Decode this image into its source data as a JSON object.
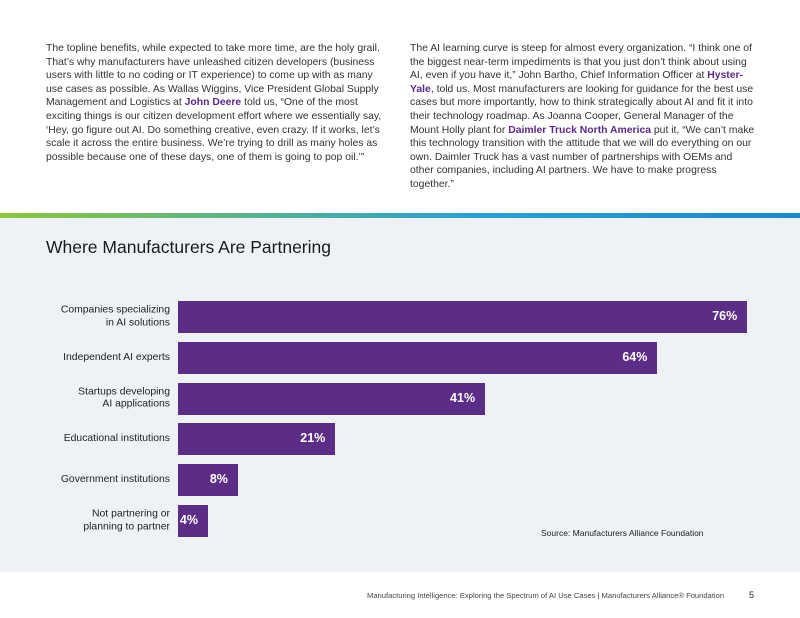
{
  "columns": [
    {
      "segments": [
        {
          "text": "The topline benefits, while expected to take more time, are the holy grail. That’s why manufacturers have unleashed citizen developers (business users with little to no coding or IT experience) to come up with as many use cases as possible. As Wallas Wiggins, Vice President Global Supply Management and Logistics at "
        },
        {
          "text": "John Deere",
          "bold": true
        },
        {
          "text": " told us, “One of the most exciting things is our citizen development effort where we essentially say, ‘Hey, go figure out AI. Do something creative, even crazy. If it works, let’s scale it across the entire business. We’re trying to drill as many holes as possible because one of these days, one of them is going to pop oil.’”"
        }
      ]
    },
    {
      "segments": [
        {
          "text": "The AI learning curve is steep for almost every organization. “I think one of the biggest near-term impediments is that you just don’t think about using AI, even if you have it,” John Bartho, Chief Information Officer at "
        },
        {
          "text": "Hyster-Yale",
          "bold": true
        },
        {
          "text": ", told us. Most manufacturers are looking for guidance for the best use cases but more importantly, how to think strategically about AI and fit it into their technology roadmap. As Joanna Cooper, General Manager of the Mount Holly plant for "
        },
        {
          "text": "Daimler Truck North America",
          "bold": true
        },
        {
          "text": " put it, “We can’t make this technology transition with the attitude that we will do everything on our own. Daimler Truck has a vast number of partnerships with OEMs and other companies, including AI partners. We have to make progress together.”"
        }
      ]
    }
  ],
  "chart_data": {
    "type": "bar",
    "orientation": "horizontal",
    "title": "Where Manufacturers Are Partnering",
    "categories": [
      "Companies specializing\nin AI solutions",
      "Independent AI experts",
      "Startups developing\nAI applications",
      "Educational institutions",
      "Government institutions",
      "Not partnering or\nplanning to partner"
    ],
    "values": [
      76,
      64,
      41,
      21,
      8,
      4
    ],
    "value_labels": [
      "76%",
      "64%",
      "41%",
      "21%",
      "8%",
      "4%"
    ],
    "color": "#5b2d86",
    "source": "Source: Manufacturers Alliance Foundation"
  },
  "footer": {
    "text": "Manufacturing Intelligence: Exploring the Spectrum of AI Use Cases  |  Manufacturers Alliance® Foundation",
    "page": "5"
  }
}
